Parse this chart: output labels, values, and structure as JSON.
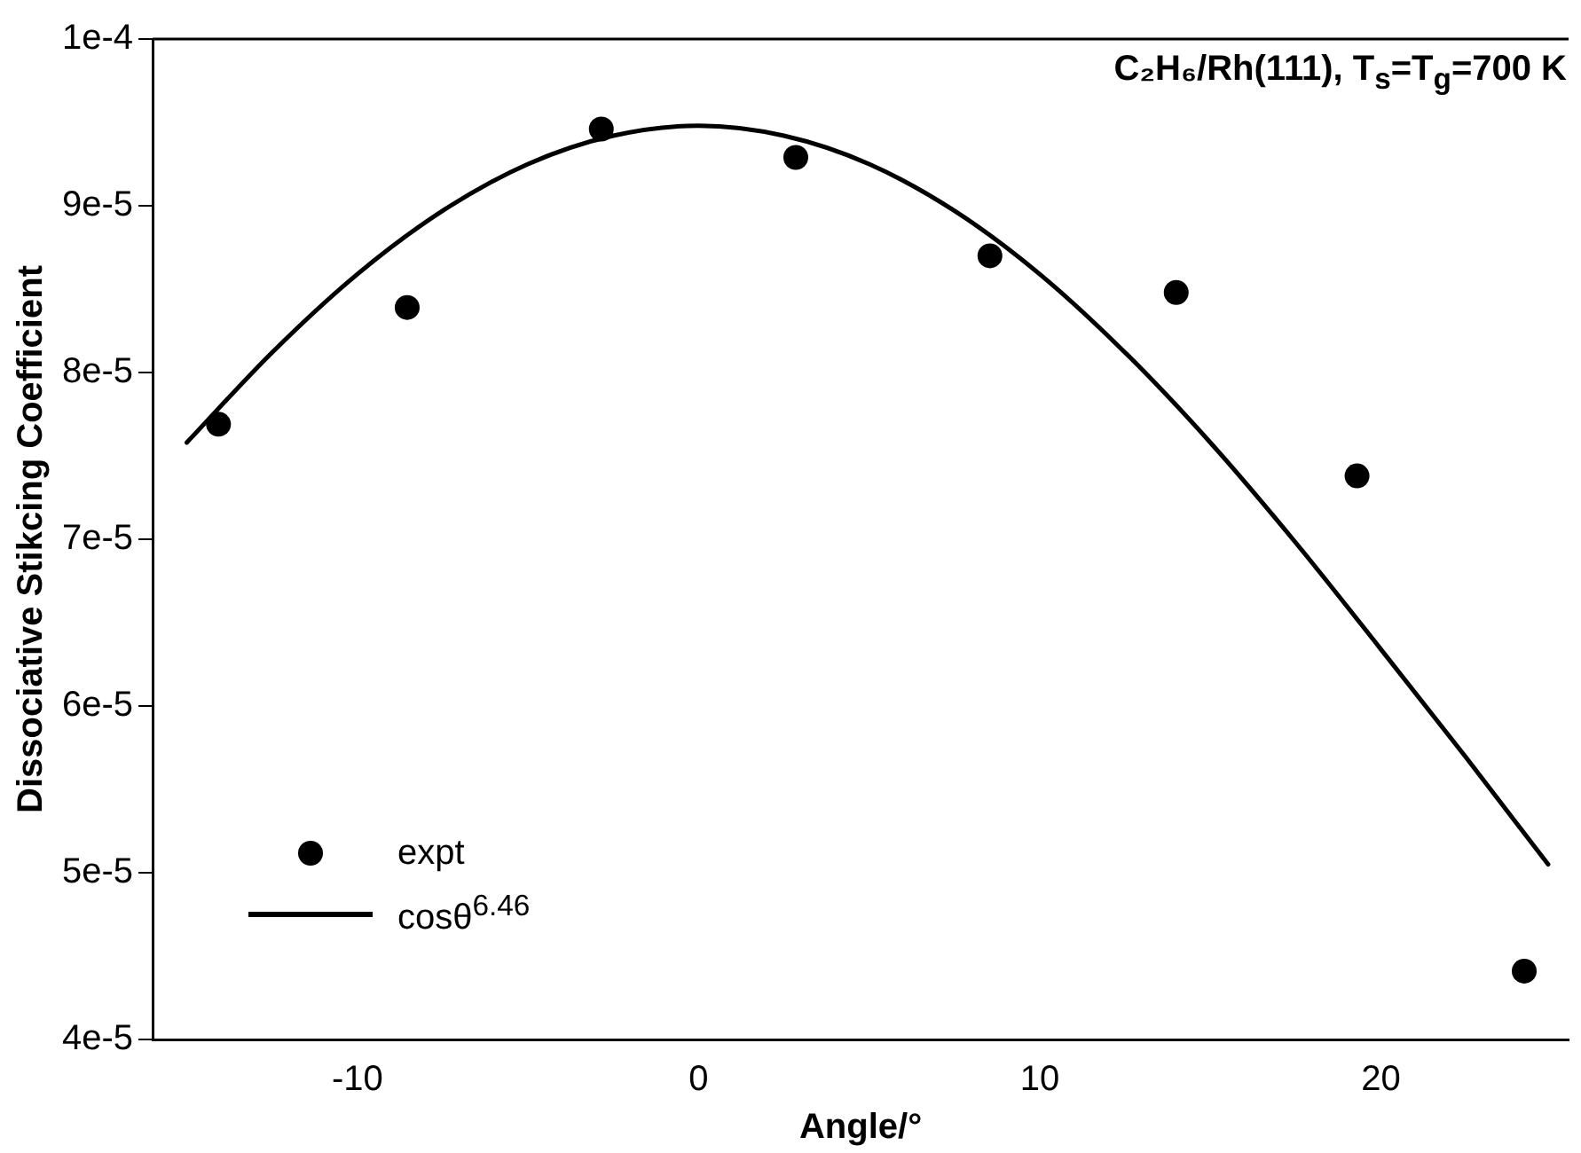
{
  "chart_data": {
    "type": "scatter",
    "title": "C₂H₆/Rh(111), T$_{s}$=T$_{g}$=700 K",
    "xlabel": "Angle/°",
    "ylabel": "Dissociative Stikcing Coefficient",
    "xlim": [
      -16,
      25.5
    ],
    "xticks": [
      -10,
      0,
      10,
      20
    ],
    "ylim": [
      4e-05,
      0.0001
    ],
    "yticks": [
      {
        "value": 4e-05,
        "label": "4e-5"
      },
      {
        "value": 5e-05,
        "label": "5e-5"
      },
      {
        "value": 6e-05,
        "label": "6e-5"
      },
      {
        "value": 7e-05,
        "label": "7e-5"
      },
      {
        "value": 8e-05,
        "label": "8e-5"
      },
      {
        "value": 9e-05,
        "label": "9e-5"
      },
      {
        "value": 0.0001,
        "label": "1e-4"
      }
    ],
    "grid": false,
    "legend": "bottom left",
    "series": [
      {
        "name": "expt",
        "marker": "circle",
        "color": "#000000",
        "x": [
          -14.07,
          -8.54,
          -2.85,
          2.85,
          8.54,
          14.0,
          19.3,
          24.2
        ],
        "values": [
          7.69e-05,
          8.39e-05,
          9.46e-05,
          9.29e-05,
          8.7e-05,
          8.48e-05,
          7.38e-05,
          4.41e-05
        ]
      },
      {
        "name": "cosθ$^{6.46}$",
        "type": "line",
        "marker": "none",
        "line_style": "solid",
        "color": "#000000",
        "x": [
          -15,
          -12.5,
          -10,
          -7.5,
          -5,
          -2.5,
          0,
          2.5,
          5,
          7.5,
          10,
          12.5,
          15,
          17.5,
          20,
          22.5,
          24.9
        ],
        "values": [
          7.58e-05,
          8.12e-05,
          8.59e-05,
          8.97e-05,
          9.25e-05,
          9.42e-05,
          9.48e-05,
          9.42e-05,
          9.25e-05,
          8.97e-05,
          8.59e-05,
          8.12e-05,
          7.58e-05,
          6.98e-05,
          6.34e-05,
          5.69e-05,
          5.05e-05
        ]
      }
    ]
  }
}
